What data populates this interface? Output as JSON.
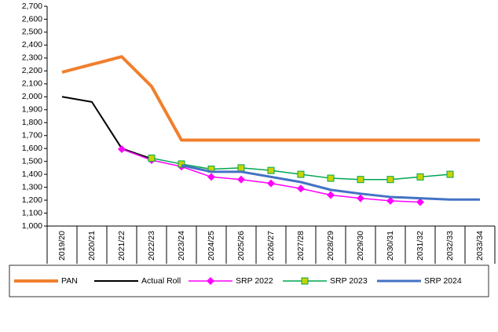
{
  "chart_data": {
    "type": "line",
    "categories": [
      "2019/20",
      "2020/21",
      "2021/22",
      "2022/23",
      "2023/24",
      "2024/25",
      "2025/26",
      "2026/27",
      "2027/28",
      "2028/29",
      "2029/30",
      "2030/31",
      "2031/32",
      "2032/33",
      "2033/34"
    ],
    "series": [
      {
        "name": "PAN",
        "color": "#f07f2d",
        "linewidth": 4,
        "values": [
          2190,
          2250,
          2310,
          2080,
          1665,
          1665,
          1665,
          1665,
          1665,
          1665,
          1665,
          1665,
          1665,
          1665,
          1665
        ]
      },
      {
        "name": "Actual Roll",
        "color": "#000000",
        "linewidth": 2,
        "values": [
          2000,
          1960,
          1600,
          1520,
          null,
          null,
          null,
          null,
          null,
          null,
          null,
          null,
          null,
          null,
          null
        ]
      },
      {
        "name": "SRP 2022",
        "color": "#ff00ff",
        "linewidth": 1.5,
        "marker": "diamond",
        "values": [
          null,
          null,
          1595,
          1510,
          1460,
          1380,
          1360,
          1330,
          1290,
          1240,
          1215,
          1195,
          1185,
          null,
          null
        ]
      },
      {
        "name": "SRP 2023",
        "color": "#00a650",
        "linewidth": 1.5,
        "marker": "square",
        "marker_fill": "#c8d400",
        "values": [
          null,
          null,
          null,
          1525,
          1480,
          1440,
          1450,
          1430,
          1400,
          1370,
          1360,
          1360,
          1380,
          1400,
          null
        ]
      },
      {
        "name": "SRP 2024",
        "color": "#4472c4",
        "linewidth": 3,
        "values": [
          null,
          null,
          null,
          null,
          1470,
          1420,
          1420,
          1380,
          1340,
          1280,
          1250,
          1225,
          1215,
          1205,
          1205
        ]
      }
    ],
    "ylim": [
      1000,
      2700
    ],
    "yticks": [
      {
        "value": 1000,
        "label": "1,000"
      },
      {
        "value": 1100,
        "label": "1,100"
      },
      {
        "value": 1200,
        "label": "1,200"
      },
      {
        "value": 1300,
        "label": "1,300"
      },
      {
        "value": 1400,
        "label": "1,400"
      },
      {
        "value": 1500,
        "label": "1,500"
      },
      {
        "value": 1600,
        "label": "1,600"
      },
      {
        "value": 1700,
        "label": "1,700"
      },
      {
        "value": 1800,
        "label": "1,800"
      },
      {
        "value": 1900,
        "label": "1,900"
      },
      {
        "value": 2000,
        "label": "2,000"
      },
      {
        "value": 2100,
        "label": "2,100"
      },
      {
        "value": 2200,
        "label": "2,200"
      },
      {
        "value": 2300,
        "label": "2,300"
      },
      {
        "value": 2400,
        "label": "2,400"
      },
      {
        "value": 2500,
        "label": "2,500"
      },
      {
        "value": 2600,
        "label": "2,600"
      },
      {
        "value": 2700,
        "label": "2,700"
      }
    ],
    "grid": false,
    "legend": "bottom"
  }
}
